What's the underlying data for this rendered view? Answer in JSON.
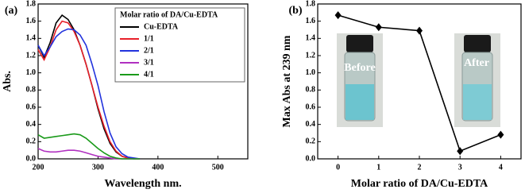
{
  "chart_data": [
    {
      "type": "line",
      "panel": "(a)",
      "xlabel": "Wavelength nm.",
      "ylabel": "Abs.",
      "legend_title": "Molar ratio of DA/Cu-EDTA",
      "x": [
        200,
        210,
        220,
        230,
        240,
        250,
        260,
        270,
        280,
        290,
        300,
        310,
        320,
        330,
        340,
        350,
        360,
        370
      ],
      "series": [
        {
          "name": "Cu-EDTA",
          "color": "#000000",
          "values": [
            1.32,
            1.18,
            1.35,
            1.58,
            1.67,
            1.62,
            1.5,
            1.32,
            1.1,
            0.85,
            0.58,
            0.35,
            0.18,
            0.08,
            0.03,
            0.01,
            0,
            0
          ]
        },
        {
          "name": "1/1",
          "color": "#e8202a",
          "values": [
            1.27,
            1.15,
            1.3,
            1.5,
            1.6,
            1.58,
            1.48,
            1.32,
            1.1,
            0.85,
            0.6,
            0.38,
            0.2,
            0.09,
            0.03,
            0.01,
            0,
            0
          ]
        },
        {
          "name": "2/1",
          "color": "#2233dd",
          "values": [
            1.32,
            1.2,
            1.3,
            1.42,
            1.48,
            1.51,
            1.5,
            1.44,
            1.32,
            1.1,
            0.85,
            0.55,
            0.3,
            0.14,
            0.06,
            0.02,
            0.01,
            0
          ]
        },
        {
          "name": "3/1",
          "color": "#b030c0",
          "values": [
            0.12,
            0.09,
            0.08,
            0.08,
            0.09,
            0.1,
            0.1,
            0.09,
            0.07,
            0.05,
            0.03,
            0.02,
            0.01,
            0,
            0,
            0,
            0,
            0
          ]
        },
        {
          "name": "4/1",
          "color": "#1a9a1a",
          "values": [
            0.28,
            0.24,
            0.25,
            0.26,
            0.27,
            0.28,
            0.29,
            0.28,
            0.24,
            0.18,
            0.12,
            0.07,
            0.03,
            0.01,
            0,
            0,
            0,
            0
          ]
        }
      ],
      "xlim": [
        200,
        550
      ],
      "xticks": [
        200,
        300,
        400,
        500
      ],
      "ylim": [
        0,
        1.8
      ],
      "yticks": [
        {
          "value": 0,
          "label": "0.0"
        },
        0.2,
        0.4,
        0.6,
        0.8,
        {
          "value": 1,
          "label": "1.0"
        },
        1.2,
        1.4,
        1.6,
        1.8
      ]
    },
    {
      "type": "line",
      "panel": "(b)",
      "xlabel": "Molar ratio of DA/Cu-EDTA",
      "ylabel": "Max Abs at 239 nm",
      "markers": "diamond",
      "annotations": [
        "Before",
        "After"
      ],
      "x": [
        0,
        1,
        2,
        3,
        4
      ],
      "series": [
        {
          "color": "#000000",
          "values": [
            1.67,
            1.53,
            1.49,
            0.09,
            0.28
          ]
        }
      ],
      "xlim": [
        -0.5,
        4.5
      ],
      "xticks": [
        0,
        1,
        2,
        3,
        4
      ],
      "ylim": [
        0,
        1.8
      ],
      "yticks": [
        {
          "value": 0,
          "label": "0.0"
        },
        0.2,
        0.4,
        0.6,
        0.8,
        {
          "value": 1,
          "label": "1.0"
        },
        1.2,
        1.4,
        1.6,
        1.8
      ]
    }
  ]
}
